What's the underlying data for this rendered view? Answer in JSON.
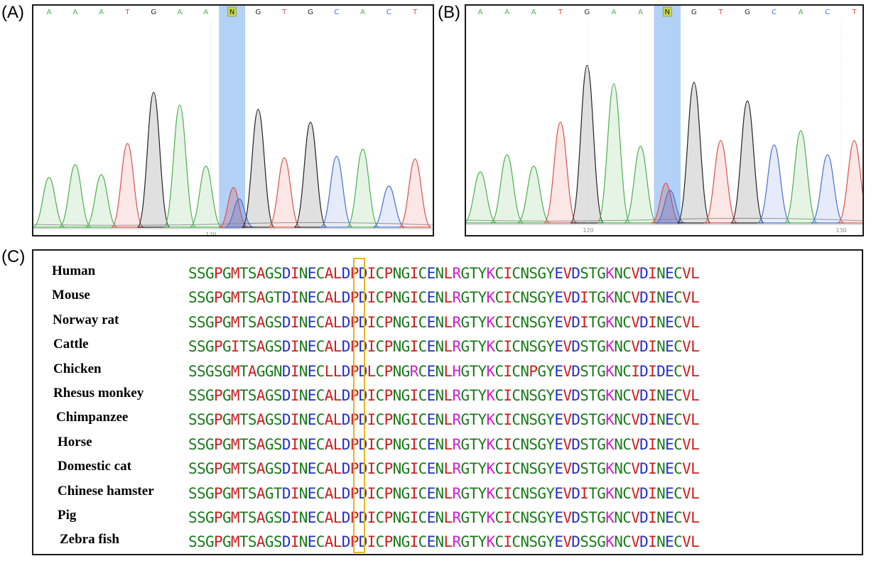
{
  "panels": {
    "A": {
      "label": "(A)",
      "bases": [
        "A",
        "A",
        "A",
        "T",
        "G",
        "A",
        "A",
        "N",
        "G",
        "T",
        "G",
        "C",
        "A",
        "C",
        "T"
      ],
      "ticks": [
        "120"
      ]
    },
    "B": {
      "label": "(B)",
      "bases": [
        "A",
        "A",
        "A",
        "T",
        "G",
        "A",
        "A",
        "N",
        "G",
        "T",
        "G",
        "C",
        "A",
        "C",
        "T"
      ],
      "ticks": [
        "120",
        "130"
      ]
    }
  },
  "base_colors": {
    "A": "#4caf50",
    "T": "#d9534f",
    "G": "#222222",
    "C": "#4a6fd1",
    "N": "#222222",
    "N_bg": "#c8d84a"
  },
  "highlight_color": "#b3d1f7",
  "alignment": {
    "label": "(C)",
    "residue_colors": {
      "S": "#1a7a1a",
      "G": "#1a7a1a",
      "T": "#1a7a1a",
      "N": "#1a7a1a",
      "Y": "#1a7a1a",
      "C": "#1a7a1a",
      "Q": "#1a7a1a",
      "P": "#cc1f1f",
      "M": "#cc1f1f",
      "A": "#cc1f1f",
      "I": "#cc1f1f",
      "L": "#cc1f1f",
      "V": "#cc1f1f",
      "F": "#cc1f1f",
      "W": "#cc1f1f",
      "D": "#1f2fcc",
      "E": "#1f2fcc",
      "K": "#cc22cc",
      "R": "#cc22cc",
      "H": "#cc22cc"
    },
    "rows": [
      {
        "species": "Human",
        "seq": "SSGPGMTSAGSDINECALDPDICPNGICENLRGTYKCICNSGYEVDSTGKNCVDINECVL"
      },
      {
        "species": "Mouse",
        "seq": "SSGPGMTSAGTDINECALDPDICPNGICENLRGTYKCICNSGYEVDITGKNCVDINECVL"
      },
      {
        "species": "Norway rat",
        "seq": "SSGPGMTSAGSDINECALDPDICPNGICENLRGTYKCICNSGYEVDITGKNCVDINECVL"
      },
      {
        "species": "Cattle",
        "seq": "SSGPGITSAGSDINECALDPDICPNGICENLRGTYKCICNSGYEVDSTGKNCVDINECVL"
      },
      {
        "species": "Chicken",
        "seq": "SSGSGMTAGGNDINECLLDPDLCPNGRCENLHGTYKCICNPGYEVDSTGKNCIDIDECVL"
      },
      {
        "species": "Rhesus monkey",
        "seq": "SSGPGMTSAGSDINECALDPDICPNGICENLRGTYKCICNSGYEVDSTGKNCVDINECVL"
      },
      {
        "species": "Chimpanzee",
        "seq": "SSGPGMTSAGSDINECALDPDICPNGICENLRGTYKCICNSGYEVDSTGKNCVDINECVL"
      },
      {
        "species": "Horse",
        "seq": "SSGPGMTSAGSDINECALDPDICPNGICENLRGTYKCICNSGYEVDSTGKNCVDINECVL"
      },
      {
        "species": "Domestic cat",
        "seq": "SSGPGMTSAGSDINECALDPDICPNGICENLRGTYKCICNSGYEVDSTGKNCVDINECVL"
      },
      {
        "species": "Chinese hamster",
        "seq": "SSGPGMTSAGTDINECALDPDICPNGICENLRGTYKCICNSGYEVDITGKNCVDINECVL"
      },
      {
        "species": "Pig",
        "seq": "SSGPGMTSAGSDINECALDPDICPNGICENLRGTYKCICNSGYEVDSTGKNCVDINECVL"
      },
      {
        "species": "Zebra fish",
        "seq": "SSGPGMTSAGSDINECALDPDICPNGICENLRGTYKCICNSGYEVDSSGKNCVDINECVL"
      }
    ]
  }
}
